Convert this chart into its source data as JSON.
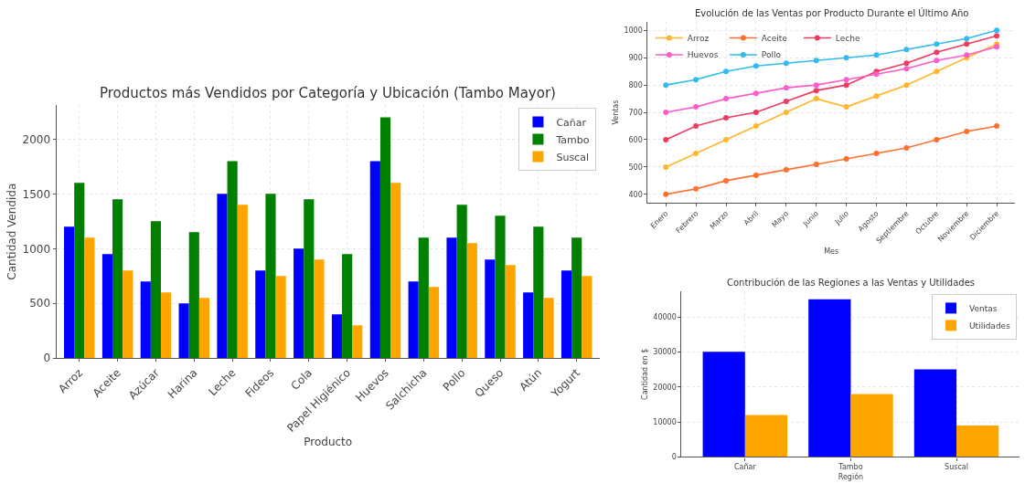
{
  "chart_data": [
    {
      "type": "bar",
      "title": "Productos más Vendidos por Categoría y Ubicación (Tambo Mayor)",
      "xlabel": "Producto",
      "ylabel": "Cantidad Vendida",
      "categories": [
        "Arroz",
        "Aceite",
        "Azúcar",
        "Harina",
        "Leche",
        "Fideos",
        "Cola",
        "Papel Higiénico",
        "Huevos",
        "Salchicha",
        "Pollo",
        "Queso",
        "Atún",
        "Yogurt"
      ],
      "series": [
        {
          "name": "Cañar",
          "color": "#0000ff",
          "values": [
            1200,
            950,
            700,
            500,
            1500,
            800,
            1000,
            400,
            1800,
            700,
            1100,
            900,
            600,
            800
          ]
        },
        {
          "name": "Tambo",
          "color": "#008000",
          "values": [
            1600,
            1450,
            1250,
            1150,
            1800,
            1500,
            1450,
            950,
            2200,
            1100,
            1400,
            1300,
            1200,
            1100
          ]
        },
        {
          "name": "Suscal",
          "color": "#ffa500",
          "values": [
            1100,
            800,
            600,
            550,
            1400,
            750,
            900,
            300,
            1600,
            650,
            1050,
            850,
            550,
            750
          ]
        }
      ],
      "ylim": [
        0,
        2310
      ],
      "yticks": [
        0,
        500,
        1000,
        1500,
        2000
      ],
      "grid": true,
      "legend": "top right"
    },
    {
      "type": "line",
      "title": "Evolución de las Ventas por Producto Durante el Último Año",
      "xlabel": "Mes",
      "ylabel": "Ventas",
      "categories": [
        "Enero",
        "Febrero",
        "Marzo",
        "Abril",
        "Mayo",
        "Junio",
        "Julio",
        "Agosto",
        "Septiembre",
        "Octubre",
        "Noviembre",
        "Diciembre"
      ],
      "series": [
        {
          "name": "Arroz",
          "color": "#ffb62a",
          "values": [
            500,
            550,
            600,
            650,
            700,
            750,
            720,
            760,
            800,
            850,
            900,
            950
          ]
        },
        {
          "name": "Aceite",
          "color": "#ff6f2e",
          "values": [
            400,
            420,
            450,
            470,
            490,
            510,
            530,
            550,
            570,
            600,
            630,
            650
          ]
        },
        {
          "name": "Leche",
          "color": "#f03a5f",
          "values": [
            600,
            650,
            680,
            700,
            740,
            780,
            800,
            850,
            880,
            920,
            950,
            980
          ]
        },
        {
          "name": "Huevos",
          "color": "#ff5ccb",
          "values": [
            700,
            720,
            750,
            770,
            790,
            800,
            820,
            840,
            860,
            890,
            910,
            940
          ]
        },
        {
          "name": "Pollo",
          "color": "#33bbee",
          "values": [
            800,
            820,
            850,
            870,
            880,
            890,
            900,
            910,
            930,
            950,
            970,
            1000
          ]
        }
      ],
      "ylim": [
        370,
        1030
      ],
      "yticks": [
        400,
        500,
        600,
        700,
        800,
        900,
        1000
      ],
      "grid": true,
      "legend": "top left",
      "marker": "circle",
      "line_style": "solid"
    },
    {
      "type": "bar",
      "title": "Contribución de las Regiones a las Ventas y Utilidades",
      "xlabel": "Región",
      "ylabel": "Cantidad en $",
      "categories": [
        "Cañar",
        "Tambo",
        "Suscal"
      ],
      "series": [
        {
          "name": "Ventas",
          "color": "#0000ff",
          "values": [
            30000,
            45000,
            25000
          ]
        },
        {
          "name": "Utilidades",
          "color": "#ffa500",
          "values": [
            12000,
            18000,
            9000
          ]
        }
      ],
      "ylim": [
        0,
        47250
      ],
      "yticks": [
        0,
        10000,
        20000,
        30000,
        40000
      ],
      "grid": true,
      "legend": "top right"
    }
  ]
}
